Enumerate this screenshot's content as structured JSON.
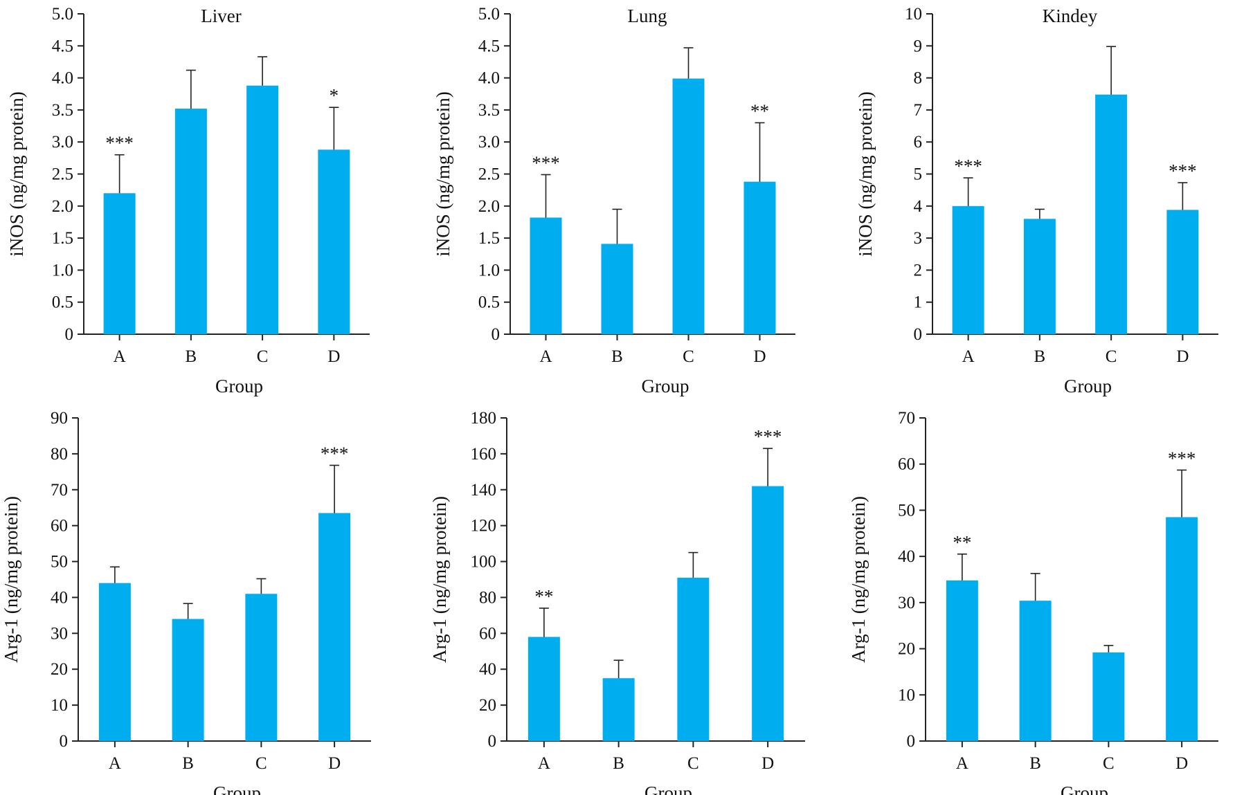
{
  "chart_data": [
    {
      "type": "bar",
      "title": "Liver",
      "xlabel": "Group",
      "ylabel": "iNOS (ng/mg protein)",
      "ylim": [
        0,
        5
      ],
      "yticks": [
        "0",
        "0.5",
        "1.0",
        "1.5",
        "2.0",
        "2.5",
        "3.0",
        "3.5",
        "4.0",
        "4.5",
        "5.0"
      ],
      "categories": [
        "A",
        "B",
        "C",
        "D"
      ],
      "values": [
        2.2,
        3.52,
        3.88,
        2.88
      ],
      "errors": [
        0.6,
        0.6,
        0.45,
        0.66
      ],
      "significance": [
        "***",
        "",
        "",
        "*"
      ],
      "bar_color": "#00aeef"
    },
    {
      "type": "bar",
      "title": "Lung",
      "xlabel": "Group",
      "ylabel": "iNOS (ng/mg protein)",
      "ylim": [
        0,
        5
      ],
      "yticks": [
        "0",
        "0.5",
        "1.0",
        "1.5",
        "2.0",
        "2.5",
        "3.0",
        "3.5",
        "4.0",
        "4.5",
        "5.0"
      ],
      "categories": [
        "A",
        "B",
        "C",
        "D"
      ],
      "values": [
        1.82,
        1.41,
        3.99,
        2.38
      ],
      "errors": [
        0.67,
        0.54,
        0.48,
        0.92
      ],
      "significance": [
        "***",
        "",
        "",
        "**"
      ],
      "bar_color": "#00aeef"
    },
    {
      "type": "bar",
      "title": "Kindey",
      "xlabel": "Group",
      "ylabel": "iNOS (ng/mg protein)",
      "ylim": [
        0,
        10
      ],
      "yticks": [
        "0",
        "1",
        "2",
        "3",
        "4",
        "5",
        "6",
        "7",
        "8",
        "9",
        "10"
      ],
      "categories": [
        "A",
        "B",
        "C",
        "D"
      ],
      "values": [
        4.0,
        3.6,
        7.48,
        3.88
      ],
      "errors": [
        0.88,
        0.3,
        1.5,
        0.85
      ],
      "significance": [
        "***",
        "",
        "",
        "***"
      ],
      "bar_color": "#00aeef"
    },
    {
      "type": "bar",
      "title": "",
      "xlabel": "Group",
      "ylabel": "Arg-1 (ng/mg protein)",
      "ylim": [
        0,
        90
      ],
      "yticks": [
        "0",
        "10",
        "20",
        "30",
        "40",
        "50",
        "60",
        "70",
        "80",
        "90"
      ],
      "categories": [
        "A",
        "B",
        "C",
        "D"
      ],
      "values": [
        44,
        34,
        41,
        63.5
      ],
      "errors": [
        4.5,
        4.3,
        4.2,
        13.3
      ],
      "significance": [
        "",
        "",
        "",
        "***"
      ],
      "bar_color": "#00aeef"
    },
    {
      "type": "bar",
      "title": "",
      "xlabel": "Group",
      "ylabel": "Arg-1 (ng/mg protein)",
      "ylim": [
        0,
        180
      ],
      "yticks": [
        "0",
        "20",
        "40",
        "60",
        "80",
        "100",
        "120",
        "140",
        "160",
        "180"
      ],
      "categories": [
        "A",
        "B",
        "C",
        "D"
      ],
      "values": [
        58,
        35,
        91,
        142
      ],
      "errors": [
        16,
        10,
        14,
        21
      ],
      "significance": [
        "**",
        "",
        "",
        "***"
      ],
      "bar_color": "#00aeef"
    },
    {
      "type": "bar",
      "title": "",
      "xlabel": "Group",
      "ylabel": "Arg-1 (ng/mg protein)",
      "ylim": [
        0,
        70
      ],
      "yticks": [
        "0",
        "10",
        "20",
        "30",
        "40",
        "50",
        "60",
        "70"
      ],
      "categories": [
        "A",
        "B",
        "C",
        "D"
      ],
      "values": [
        34.8,
        30.4,
        19.2,
        48.5
      ],
      "errors": [
        5.7,
        5.9,
        1.5,
        10.2
      ],
      "significance": [
        "**",
        "",
        "",
        "***"
      ],
      "bar_color": "#00aeef"
    }
  ]
}
